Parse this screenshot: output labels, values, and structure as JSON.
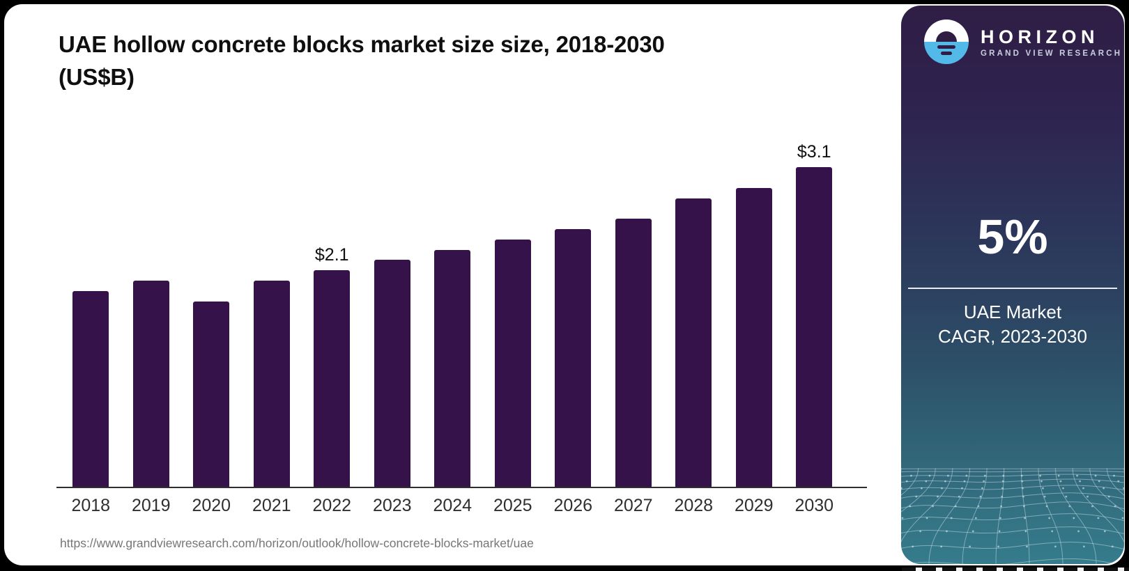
{
  "chart": {
    "title_line1": "UAE hollow concrete blocks market size size, 2018-2030",
    "title_line2": "(US$B)"
  },
  "chart_data": {
    "type": "bar",
    "title": "UAE hollow concrete blocks market size size, 2018-2030 (US$B)",
    "categories": [
      "2018",
      "2019",
      "2020",
      "2021",
      "2022",
      "2023",
      "2024",
      "2025",
      "2026",
      "2027",
      "2028",
      "2029",
      "2030"
    ],
    "values": [
      1.9,
      2.0,
      1.8,
      2.0,
      2.1,
      2.2,
      2.3,
      2.4,
      2.5,
      2.6,
      2.8,
      2.9,
      3.1
    ],
    "data_labels": [
      "",
      "",
      "",
      "",
      "$2.1",
      "",
      "",
      "",
      "",
      "",
      "",
      "",
      "$3.1"
    ],
    "bar_color": "#35124A",
    "xlabel": "",
    "ylabel": "",
    "ylim": [
      0,
      3.4
    ],
    "grid": false,
    "legend": null
  },
  "source": {
    "url": "https://www.grandviewresearch.com/horizon/outlook/hollow-concrete-blocks-market/uae"
  },
  "sidebar": {
    "brand": {
      "name": "HORIZON",
      "subtitle": "GRAND VIEW RESEARCH",
      "logo_blue": "#52B9E9",
      "logo_dark": "#2F1D44"
    },
    "stat": {
      "value": "5%",
      "caption_line1": "UAE Market",
      "caption_line2": "CAGR, 2023-2030"
    },
    "colors": {
      "top": "#2F1D44",
      "bottom": "#357C8C"
    }
  }
}
